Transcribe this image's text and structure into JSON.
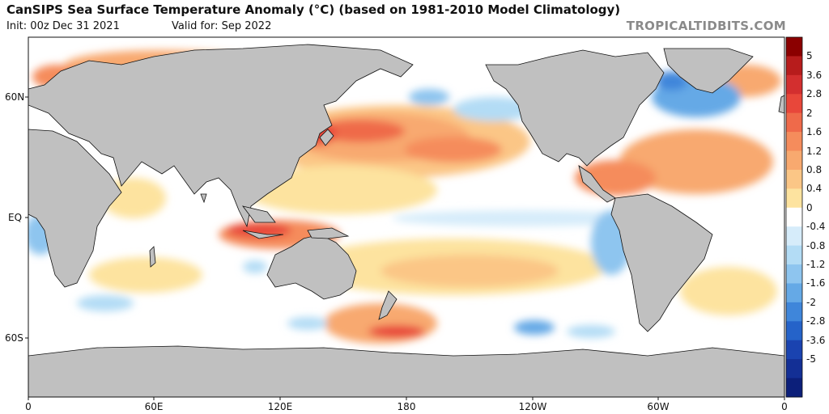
{
  "header": {
    "title": "CanSIPS Sea Surface Temperature Anomaly (°C) (based on 1981-2010 Model Climatology)",
    "init": "Init: 00z Dec 31 2021",
    "valid": "Valid for: Sep 2022",
    "brand": "TROPICALTIDBITS.COM"
  },
  "axes": {
    "y_labels": [
      "60N",
      "EQ",
      "60S"
    ],
    "x_labels": [
      "0",
      "60E",
      "120E",
      "180",
      "120W",
      "60W",
      "0"
    ]
  },
  "colorbar": {
    "labels": [
      "5",
      "3.6",
      "2.8",
      "2",
      "1.6",
      "1.2",
      "0.8",
      "0.4",
      "0",
      "-0.4",
      "-0.8",
      "-1.2",
      "-1.6",
      "-2",
      "-2.8",
      "-3.6",
      "-5"
    ],
    "colors": [
      "#8b0000",
      "#b71c1c",
      "#d32f2f",
      "#e8473a",
      "#ef6a4a",
      "#f58c5c",
      "#f8a96f",
      "#fbc686",
      "#fde39f",
      "#ffffff",
      "#d6ecfa",
      "#b3dcf5",
      "#8ec5ef",
      "#65a9e6",
      "#3f86da",
      "#2563c9",
      "#1a43b0",
      "#132f95",
      "#0c1f7a"
    ]
  },
  "colors": {
    "land": "#c0c0c0",
    "coast": "#111111"
  }
}
